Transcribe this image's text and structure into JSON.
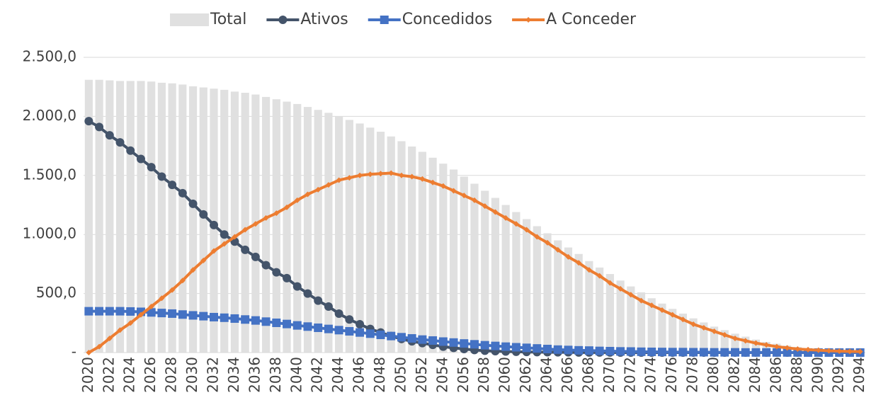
{
  "chart_data": {
    "type": "bar",
    "categories": [
      "2020",
      null,
      "2022",
      null,
      "2024",
      null,
      "2026",
      null,
      "2028",
      null,
      "2030",
      null,
      "2032",
      null,
      "2034",
      null,
      "2036",
      null,
      "2038",
      null,
      "2040",
      null,
      "2042",
      null,
      "2044",
      null,
      "2046",
      null,
      "2048",
      null,
      "2050",
      null,
      "2052",
      null,
      "2054",
      null,
      "2056",
      null,
      "2058",
      null,
      "2060",
      null,
      "2062",
      null,
      "2064",
      null,
      "2066",
      null,
      "2068",
      null,
      "2070",
      null,
      "2072",
      null,
      "2074",
      null,
      "2076",
      null,
      "2078",
      null,
      "2080",
      null,
      "2082",
      null,
      "2084",
      null,
      "2086",
      null,
      "2088",
      null,
      "2090",
      null,
      "2092",
      null,
      "2094"
    ],
    "series": [
      {
        "name": "Total",
        "type": "bar",
        "color": "#e0e0e0",
        "values": [
          2310,
          2310,
          2305,
          2300,
          2300,
          2300,
          2295,
          2285,
          2280,
          2270,
          2255,
          2245,
          2235,
          2225,
          2210,
          2200,
          2185,
          2165,
          2145,
          2125,
          2105,
          2080,
          2055,
          2030,
          2000,
          1970,
          1940,
          1905,
          1870,
          1830,
          1790,
          1745,
          1700,
          1650,
          1600,
          1550,
          1490,
          1430,
          1370,
          1310,
          1250,
          1190,
          1130,
          1070,
          1010,
          950,
          890,
          835,
          775,
          720,
          665,
          610,
          560,
          510,
          460,
          415,
          370,
          330,
          290,
          255,
          220,
          190,
          160,
          135,
          110,
          90,
          75,
          60,
          48,
          38,
          30,
          24,
          18,
          14,
          10
        ]
      },
      {
        "name": "Ativos",
        "type": "line",
        "marker": "circle",
        "color": "#44546a",
        "values": [
          1960,
          1910,
          1840,
          1780,
          1710,
          1640,
          1570,
          1490,
          1420,
          1350,
          1260,
          1170,
          1080,
          1000,
          940,
          870,
          810,
          740,
          680,
          630,
          560,
          500,
          440,
          390,
          330,
          280,
          240,
          200,
          170,
          140,
          115,
          95,
          80,
          65,
          50,
          40,
          30,
          22,
          16,
          12,
          9,
          7,
          5,
          4,
          3,
          2,
          2,
          1,
          1,
          1,
          1,
          0,
          0,
          0,
          0,
          0,
          0,
          0,
          0,
          0,
          0,
          0,
          0,
          0,
          0,
          0,
          0,
          0,
          0,
          0,
          0,
          0,
          0,
          0,
          0
        ]
      },
      {
        "name": "Concedidos",
        "type": "line",
        "marker": "square",
        "color": "#4472c4",
        "values": [
          350,
          350,
          350,
          350,
          348,
          345,
          340,
          335,
          330,
          322,
          315,
          308,
          300,
          295,
          288,
          280,
          272,
          262,
          252,
          242,
          230,
          220,
          210,
          200,
          190,
          180,
          170,
          160,
          150,
          140,
          130,
          120,
          110,
          102,
          93,
          85,
          77,
          70,
          62,
          56,
          50,
          45,
          40,
          35,
          30,
          25,
          22,
          19,
          17,
          14,
          12,
          10,
          9,
          7,
          6,
          5,
          4,
          4,
          3,
          3,
          2,
          2,
          2,
          1,
          1,
          1,
          1,
          1,
          1,
          0,
          0,
          0,
          0,
          0,
          0
        ]
      },
      {
        "name": "A Conceder",
        "type": "line",
        "marker": "diamond",
        "color": "#ed7d31",
        "values": [
          0,
          50,
          120,
          190,
          250,
          320,
          390,
          460,
          530,
          610,
          700,
          780,
          860,
          920,
          980,
          1040,
          1090,
          1140,
          1180,
          1230,
          1290,
          1340,
          1380,
          1420,
          1460,
          1480,
          1500,
          1510,
          1515,
          1520,
          1500,
          1490,
          1470,
          1440,
          1410,
          1370,
          1330,
          1290,
          1240,
          1190,
          1140,
          1090,
          1040,
          980,
          930,
          870,
          810,
          760,
          700,
          650,
          590,
          540,
          490,
          440,
          400,
          360,
          320,
          280,
          240,
          210,
          180,
          150,
          120,
          100,
          80,
          65,
          50,
          40,
          30,
          25,
          20,
          15,
          12,
          10,
          8
        ]
      }
    ],
    "ylim": [
      0,
      2500
    ],
    "yticks": [
      {
        "value": 0,
        "label": "-"
      },
      {
        "value": 500,
        "label": "500,0"
      },
      {
        "value": 1000,
        "label": "1.000,0"
      },
      {
        "value": 1500,
        "label": "1.500,0"
      },
      {
        "value": 2000,
        "label": "2.000,0"
      },
      {
        "value": 2500,
        "label": "2.500,0"
      }
    ],
    "grid": true,
    "legend": "top"
  }
}
